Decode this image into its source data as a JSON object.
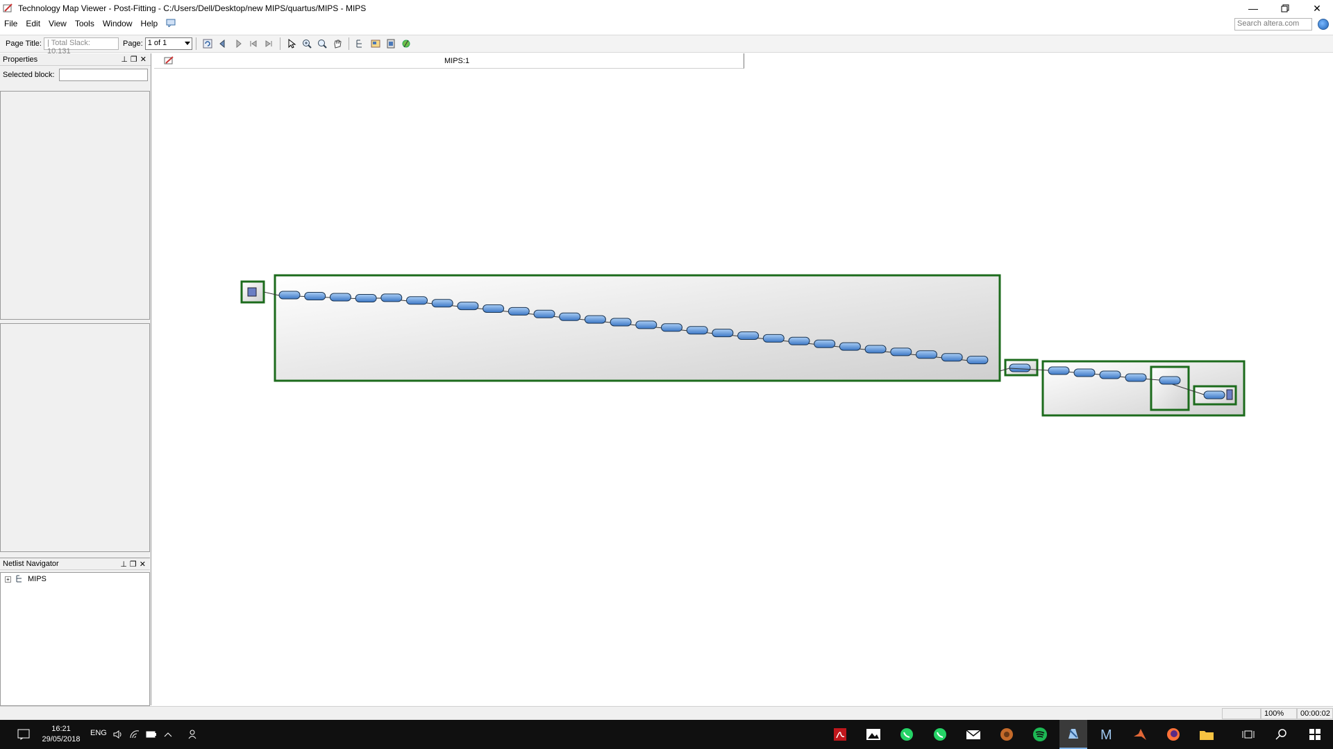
{
  "window": {
    "title": "Technology Map Viewer - Post-Fitting - C:/Users/Dell/Desktop/new MIPS/quartus/MIPS - MIPS"
  },
  "menu": {
    "items": [
      "File",
      "Edit",
      "View",
      "Tools",
      "Window",
      "Help"
    ],
    "search_placeholder": "Search altera.com"
  },
  "toolbar": {
    "page_title_label": "Page Title:",
    "page_title_value": "| Total Slack: 10.131",
    "page_label": "Page:",
    "page_value": "1 of 1"
  },
  "properties_panel": {
    "title": "Properties",
    "selected_block_label": "Selected block:",
    "selected_block_value": ""
  },
  "netlist_navigator": {
    "title": "Netlist Navigator",
    "tree": [
      {
        "label": "MIPS",
        "expanded": false
      }
    ]
  },
  "viewer": {
    "tab_label": "MIPS:1"
  },
  "status": {
    "zoom": "100%",
    "elapsed": "00:00:02"
  },
  "taskbar": {
    "time": "16:21",
    "date": "29/05/2018",
    "language": "ENG"
  }
}
